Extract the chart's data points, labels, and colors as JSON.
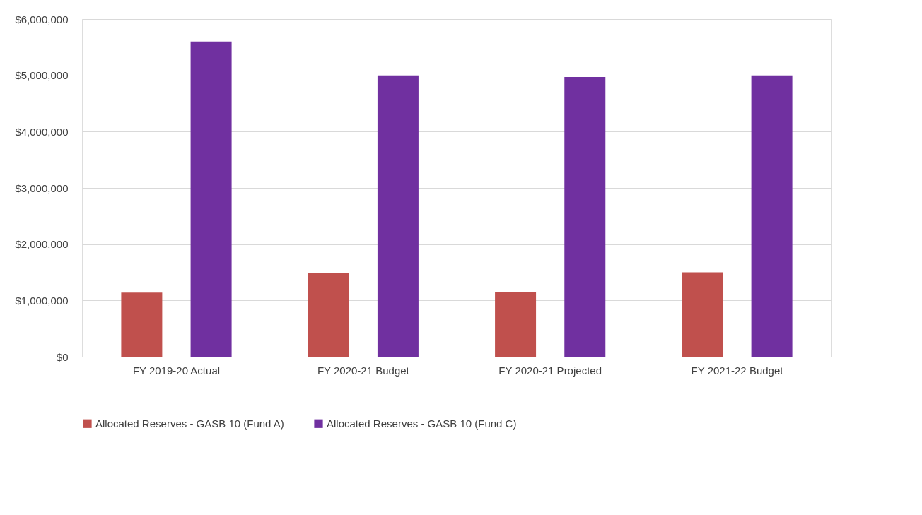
{
  "chart_data": {
    "type": "bar",
    "categories": [
      "FY 2019-20 Actual",
      "FY 2020-21 Budget",
      "FY 2020-21 Projected",
      "FY 2021-22 Budget"
    ],
    "series": [
      {
        "name": "Allocated Reserves - GASB 10 (Fund A)",
        "color": "#c0504d",
        "values": [
          1140000,
          1490000,
          1150000,
          1500000
        ]
      },
      {
        "name": "Allocated Reserves - GASB 10 (Fund C)",
        "color": "#7030a0",
        "values": [
          5600000,
          5000000,
          4970000,
          5000000
        ]
      }
    ],
    "ylim": [
      0,
      6000000
    ],
    "yticks": [
      {
        "value": 0,
        "label": "$0"
      },
      {
        "value": 1000000,
        "label": "$1,000,000"
      },
      {
        "value": 2000000,
        "label": "$2,000,000"
      },
      {
        "value": 3000000,
        "label": "$3,000,000"
      },
      {
        "value": 4000000,
        "label": "$4,000,000"
      },
      {
        "value": 5000000,
        "label": "$5,000,000"
      },
      {
        "value": 6000000,
        "label": "$6,000,000"
      }
    ],
    "grid": "y",
    "legend": "bottom"
  }
}
